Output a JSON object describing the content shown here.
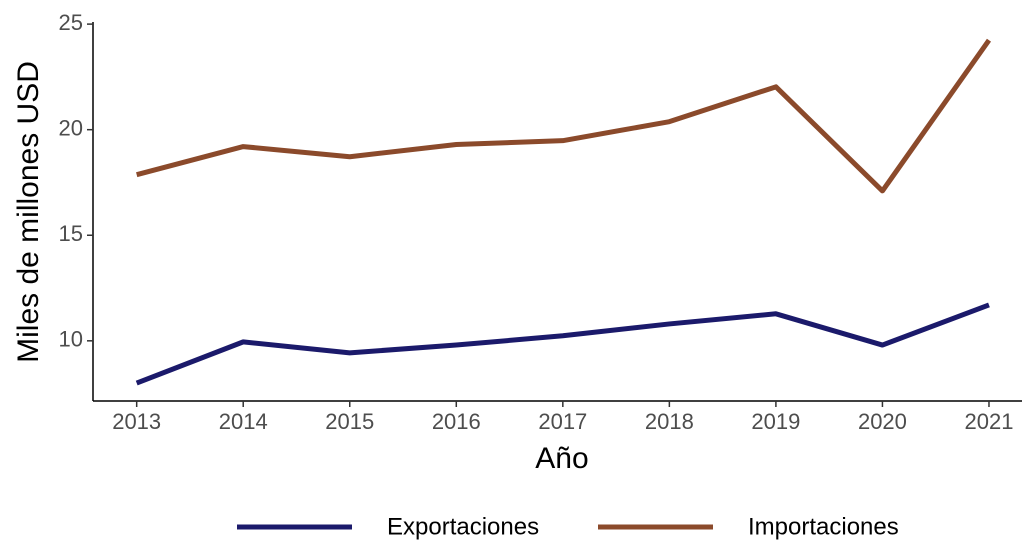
{
  "chart_data": {
    "type": "line",
    "x": [
      2013,
      2014,
      2015,
      2016,
      2017,
      2018,
      2019,
      2020,
      2021
    ],
    "xlabel": "Año",
    "ylabel": "Miles de millones USD",
    "series": [
      {
        "name": "Exportaciones",
        "color": "#1b1a6b",
        "values": [
          8.0,
          9.95,
          9.43,
          9.8,
          10.24,
          10.8,
          11.28,
          9.8,
          11.7
        ]
      },
      {
        "name": "Importaciones",
        "color": "#8b4a2b",
        "values": [
          17.87,
          19.2,
          18.72,
          19.3,
          19.48,
          20.38,
          22.03,
          17.1,
          24.24
        ]
      }
    ],
    "xlim": [
      2012.59,
      2021.31
    ],
    "xticks": [
      2013,
      2014,
      2015,
      2016,
      2017,
      2018,
      2019,
      2020,
      2021
    ],
    "ylim": [
      7.15,
      25.1
    ],
    "yticks": [
      10,
      15,
      20,
      25
    ],
    "legend": "bottom"
  }
}
